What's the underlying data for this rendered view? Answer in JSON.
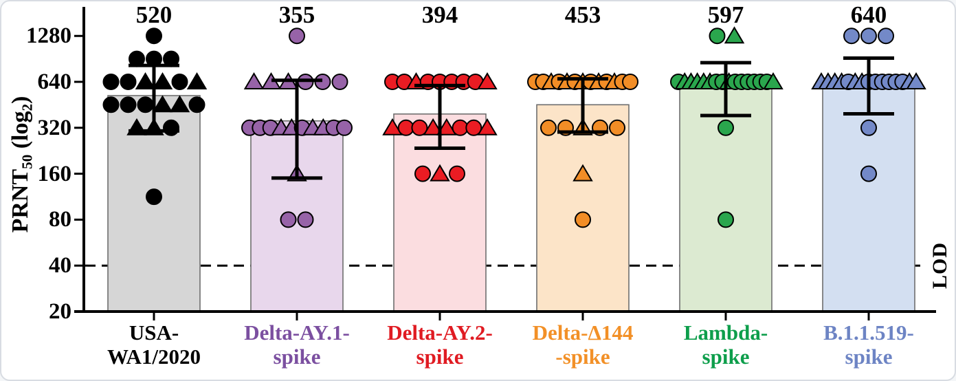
{
  "figure": {
    "y_axis_title": {
      "prefix": "PRNT",
      "sub50": "50",
      "mid": " (log",
      "sub2": "2",
      "close": ")"
    },
    "lod_label": "LOD"
  },
  "chart_data": {
    "type": "bar",
    "subtype": "bar-with-scatter-overlay",
    "scale": "log2",
    "title": "",
    "xlabel": "",
    "ylabel": "PRNT50 (log2)",
    "ylim": [
      20,
      1280
    ],
    "yticks": [
      "1280",
      "640",
      "320",
      "160",
      "80",
      "40",
      "20"
    ],
    "ytick_values": [
      1280,
      640,
      320,
      160,
      80,
      40,
      20
    ],
    "lod": {
      "value": 40,
      "label": "LOD",
      "line_style": "dashed"
    },
    "grid": false,
    "legend": "none",
    "groups": [
      {
        "label_line1": "USA-",
        "label_line2": "WA1/2020",
        "gmt": 520,
        "gmt_label": "520",
        "err_low": 305,
        "err_high": 820,
        "colors": {
          "point": "#000000",
          "bar_fill": "#d6d6d6",
          "label": "#000000"
        },
        "points": [
          {
            "value": 1280,
            "shapes": [
              "circle"
            ]
          },
          {
            "value": 905,
            "shapes": [
              "circle",
              "circle",
              "circle"
            ]
          },
          {
            "value": 640,
            "shapes": [
              "circle",
              "circle",
              "triangle",
              "triangle",
              "circle",
              "triangle"
            ]
          },
          {
            "value": 453,
            "shapes": [
              "circle",
              "circle",
              "circle",
              "triangle",
              "triangle",
              "circle"
            ]
          },
          {
            "value": 320,
            "shapes": [
              "triangle",
              "triangle",
              "circle"
            ]
          },
          {
            "value": 113,
            "shapes": [
              "circle"
            ]
          }
        ]
      },
      {
        "label_line1": "Delta-AY.1-",
        "label_line2": "spike",
        "gmt": 355,
        "gmt_label": "355",
        "err_low": 150,
        "err_high": 655,
        "colors": {
          "point": "#9763a8",
          "bar_fill": "#e8d7ec",
          "label": "#7b4fa0"
        },
        "points": [
          {
            "value": 1280,
            "shapes": [
              "circle"
            ]
          },
          {
            "value": 640,
            "shapes": [
              "triangle",
              "triangle",
              "triangle",
              "circle",
              "circle",
              "circle"
            ]
          },
          {
            "value": 320,
            "shapes": [
              "circle",
              "circle",
              "circle",
              "triangle",
              "triangle",
              "circle",
              "triangle",
              "triangle",
              "circle",
              "circle"
            ]
          },
          {
            "value": 160,
            "shapes": [
              "triangle"
            ]
          },
          {
            "value": 80,
            "shapes": [
              "circle",
              "circle"
            ]
          }
        ]
      },
      {
        "label_line1": "Delta-AY.2-",
        "label_line2": "spike",
        "gmt": 394,
        "gmt_label": "394",
        "err_low": 235,
        "err_high": 605,
        "colors": {
          "point": "#ea1c23",
          "bar_fill": "#fbdde0",
          "label": "#e01b22"
        },
        "points": [
          {
            "value": 640,
            "shapes": [
              "circle",
              "circle",
              "triangle",
              "circle",
              "circle",
              "circle",
              "circle",
              "circle",
              "triangle"
            ]
          },
          {
            "value": 320,
            "shapes": [
              "triangle",
              "circle",
              "circle",
              "triangle",
              "triangle",
              "circle",
              "circle",
              "triangle"
            ]
          },
          {
            "value": 160,
            "shapes": [
              "circle",
              "triangle",
              "circle"
            ]
          }
        ]
      },
      {
        "label_line1": "Delta-Δ144",
        "label_line2": "-spike",
        "gmt": 453,
        "gmt_label": "453",
        "err_low": 300,
        "err_high": 670,
        "colors": {
          "point": "#f28d26",
          "bar_fill": "#fce4c8",
          "label": "#f29027"
        },
        "points": [
          {
            "value": 640,
            "shapes": [
              "circle",
              "circle",
              "triangle",
              "circle",
              "triangle",
              "circle",
              "triangle",
              "circle",
              "triangle",
              "circle",
              "triangle",
              "circle",
              "circle"
            ]
          },
          {
            "value": 320,
            "shapes": [
              "circle",
              "circle",
              "triangle",
              "circle",
              "circle"
            ]
          },
          {
            "value": 160,
            "shapes": [
              "triangle"
            ]
          },
          {
            "value": 80,
            "shapes": [
              "circle"
            ]
          }
        ]
      },
      {
        "label_line1": "Lambda-",
        "label_line2": "spike",
        "gmt": 597,
        "gmt_label": "597",
        "err_low": 385,
        "err_high": 855,
        "colors": {
          "point": "#2aa64d",
          "bar_fill": "#dcead1",
          "label": "#0d9e4b"
        },
        "points": [
          {
            "value": 1280,
            "shapes": [
              "circle",
              "triangle"
            ]
          },
          {
            "value": 640,
            "shapes": [
              "circle",
              "triangle",
              "triangle",
              "triangle",
              "triangle",
              "triangle",
              "circle",
              "circle",
              "triangle",
              "circle",
              "circle",
              "circle",
              "circle",
              "circle",
              "circle",
              "triangle"
            ]
          },
          {
            "value": 320,
            "shapes": [
              "circle"
            ]
          },
          {
            "value": 80,
            "shapes": [
              "circle"
            ]
          }
        ]
      },
      {
        "label_line1": "B.1.1.519-",
        "label_line2": "spike",
        "gmt": 640,
        "gmt_label": "640",
        "err_low": 395,
        "err_high": 915,
        "colors": {
          "point": "#7389c8",
          "bar_fill": "#d3dff1",
          "label": "#6d84c4"
        },
        "points": [
          {
            "value": 1280,
            "shapes": [
              "circle",
              "circle",
              "circle"
            ]
          },
          {
            "value": 640,
            "shapes": [
              "triangle",
              "triangle",
              "triangle",
              "triangle",
              "circle",
              "triangle",
              "triangle",
              "circle",
              "circle",
              "circle",
              "circle",
              "circle",
              "circle",
              "triangle",
              "triangle"
            ]
          },
          {
            "value": 320,
            "shapes": [
              "circle"
            ]
          },
          {
            "value": 160,
            "shapes": [
              "circle"
            ]
          }
        ]
      }
    ]
  }
}
